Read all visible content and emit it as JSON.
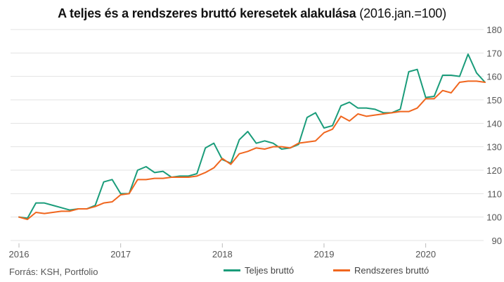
{
  "chart_data": {
    "type": "line",
    "title": "A teljes és a rendszeres bruttó keresetek alakulása",
    "subtitle": "(2016.jan.=100)",
    "xlabel": "",
    "ylabel": "",
    "ylim": [
      90,
      180
    ],
    "yticks": [
      "90",
      "100",
      "110",
      "120",
      "130",
      "140",
      "150",
      "160",
      "170",
      "180"
    ],
    "ytick_values": [
      90,
      100,
      110,
      120,
      130,
      140,
      150,
      160,
      170,
      180
    ],
    "xtick_labels": [
      "2016",
      "2017",
      "2018",
      "2019",
      "2020"
    ],
    "xtick_values": [
      0,
      12,
      24,
      36,
      48
    ],
    "x_unit": "months since 2016 Jan",
    "grid": true,
    "legend_position": "bottom",
    "series": [
      {
        "name": "Teljes bruttó",
        "color": "#1a9c7a",
        "values": [
          100,
          99.5,
          106,
          106,
          105,
          104,
          103,
          103.5,
          103.5,
          105,
          115,
          116,
          110,
          110,
          120,
          121.5,
          119,
          119.5,
          117,
          117.5,
          117.5,
          118.5,
          129.5,
          131.5,
          124.5,
          123,
          133,
          136.5,
          131.5,
          132.5,
          131.5,
          129,
          129.5,
          131,
          142.5,
          144.5,
          138,
          139,
          147.5,
          149,
          146.5,
          146.5,
          146,
          144.5,
          144.5,
          146,
          162,
          163,
          151,
          151.5,
          160.5,
          160.5,
          160,
          169.5,
          161.5,
          157.5
        ]
      },
      {
        "name": "Rendszeres bruttó",
        "color": "#f0661e",
        "values": [
          100,
          99,
          102,
          101.5,
          102,
          102.5,
          102.5,
          103.5,
          103.5,
          104.5,
          106,
          106.5,
          109.5,
          110,
          116,
          116,
          116.5,
          116.5,
          117,
          117,
          117,
          117.5,
          119,
          121,
          125,
          122.5,
          127,
          128,
          129.5,
          129,
          130,
          130,
          129.5,
          131.5,
          132,
          132.5,
          136,
          137.5,
          143,
          141,
          144,
          143,
          143.5,
          144,
          144.5,
          145,
          145,
          146.5,
          150.5,
          150.5,
          154,
          153,
          157.5,
          158,
          158,
          157.5
        ]
      }
    ]
  },
  "footer": {
    "source": "Forrás: KSH, Portfolio"
  },
  "legend": {
    "items": [
      {
        "label": "Teljes bruttó",
        "color": "#1a9c7a"
      },
      {
        "label": "Rendszeres bruttó",
        "color": "#f0661e"
      }
    ]
  }
}
